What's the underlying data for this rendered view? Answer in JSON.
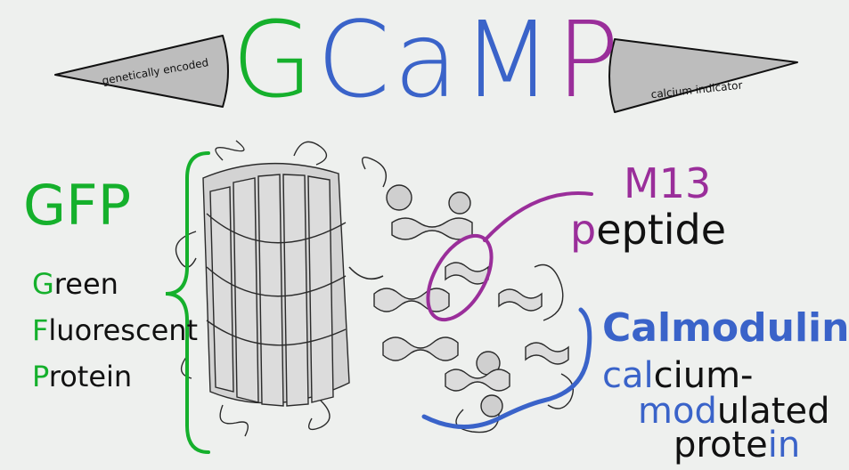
{
  "colors": {
    "green": "#15b02c",
    "blue": "#3a63c9",
    "purple": "#9a2e9a",
    "ink": "#111111",
    "banner": "#bdbdbd",
    "protein": "#d9d9d9"
  },
  "title": {
    "G": "G",
    "Ca": "Ca",
    "M": "M",
    "P": "P"
  },
  "banner_left": "genetically encoded",
  "banner_right": "calcium indicator",
  "gfp": {
    "acronym": "GFP",
    "lines": [
      {
        "initial": "G",
        "rest": "reen"
      },
      {
        "initial": "F",
        "rest": "luorescent"
      },
      {
        "initial": "P",
        "rest": "rotein"
      }
    ]
  },
  "m13": {
    "label": "M13",
    "line2_initial": "p",
    "line2_rest": "eptide"
  },
  "calmodulin": {
    "label": "Calmodulin",
    "line1_cal": "cal",
    "line1_rest": "cium-",
    "line2_mod": "mod",
    "line2_rest": "ulated",
    "line3_pre": "prote",
    "line3_in": "in"
  }
}
